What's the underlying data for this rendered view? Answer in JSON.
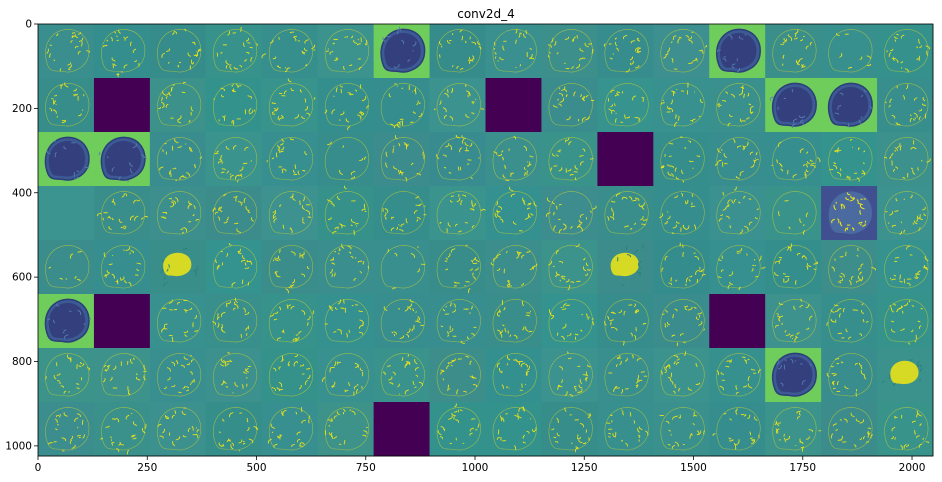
{
  "chart_data": {
    "type": "heatmap",
    "title": "conv2d_4",
    "colormap": "viridis",
    "grid": false,
    "image": {
      "width": 2048,
      "height": 1024,
      "tile_rows": 8,
      "tile_cols": 16,
      "tile_size": 128
    },
    "xlim": [
      0,
      2048
    ],
    "ylim": [
      1024,
      0
    ],
    "xticks": [
      0,
      250,
      500,
      750,
      1000,
      1250,
      1500,
      1750,
      2000
    ],
    "yticks": [
      0,
      200,
      400,
      600,
      800,
      1000
    ],
    "tiles": [
      [
        "edge",
        "edge",
        "edge",
        "edge",
        "edge",
        "edge",
        "inv",
        "edge",
        "edge",
        "edge",
        "edge",
        "edge",
        "inv",
        "edge",
        "sparse",
        "edge"
      ],
      [
        "edge",
        "dark",
        "edge",
        "edge",
        "edge",
        "edge",
        "edge",
        "edge",
        "dark",
        "edge",
        "edge",
        "edge",
        "edge",
        "inv",
        "inv",
        "edge"
      ],
      [
        "inv",
        "inv",
        "edge",
        "edge",
        "edge",
        "sparse",
        "edge",
        "edge",
        "edge",
        "edge",
        "dark",
        "edge",
        "edge",
        "edge",
        "edge",
        "edge"
      ],
      [
        "flat",
        "edge",
        "edge",
        "edge",
        "edge",
        "edge",
        "edge",
        "edge",
        "edge",
        "edge",
        "edge",
        "edge",
        "edge",
        "sparse",
        "solid",
        "edge"
      ],
      [
        "sparse",
        "edge",
        "blob",
        "edge",
        "edge",
        "edge",
        "sparse",
        "edge",
        "edge",
        "edge",
        "blob",
        "edge",
        "edge",
        "edge",
        "edge",
        "edge"
      ],
      [
        "inv",
        "dark",
        "edge",
        "edge",
        "edge",
        "edge",
        "edge",
        "edge",
        "edge",
        "edge",
        "edge",
        "edge",
        "dark",
        "edge",
        "edge",
        "edge"
      ],
      [
        "edge",
        "edge",
        "edge",
        "edge",
        "edge",
        "edge",
        "edge",
        "edge",
        "edge",
        "edge",
        "edge",
        "edge",
        "edge",
        "inv",
        "edge",
        "blob"
      ],
      [
        "edge",
        "edge",
        "edge",
        "edge",
        "edge",
        "edge",
        "dark",
        "edge",
        "edge",
        "edge",
        "edge",
        "edge",
        "edge",
        "edge",
        "edge",
        "edge"
      ]
    ]
  }
}
